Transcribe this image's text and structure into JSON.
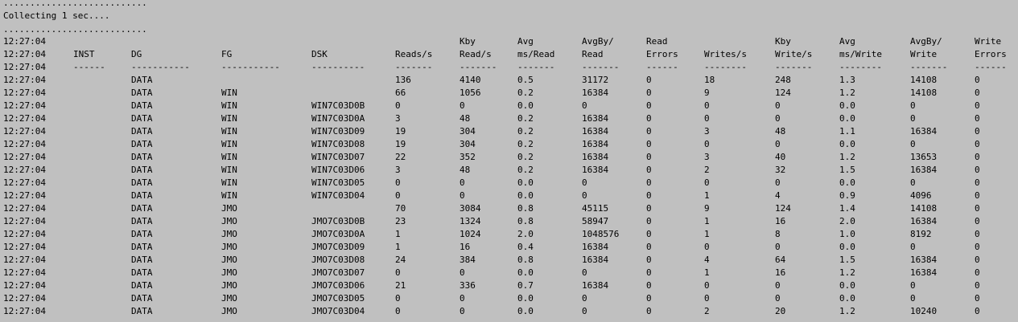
{
  "header": {
    "dots": "...........................",
    "collecting": "Collecting 1 sec....",
    "dots2": "..........................."
  },
  "columns": {
    "header1": [
      "",
      "",
      "",
      "",
      "",
      "",
      "Kby",
      "Avg",
      "AvgBy/",
      "Read",
      "",
      "Kby",
      "Avg",
      "AvgBy/",
      "Write"
    ],
    "header2": [
      "12:27:04",
      "INST",
      "DG",
      "FG",
      "DSK",
      "Reads/s",
      "Read/s",
      "ms/Read",
      "Read",
      "Errors",
      "Writes/s",
      "Write/s",
      "ms/Write",
      "Write",
      "Errors"
    ],
    "separators": [
      "12:27:04",
      "------",
      "-----------",
      "-----------",
      "----------",
      "-------",
      "-------",
      "-------",
      "-------",
      "------",
      "--------",
      "-------",
      "--------",
      "-------",
      "------"
    ],
    "first_time": "12:27:04"
  },
  "rows": [
    [
      "12:27:04",
      "",
      "DATA",
      "",
      "",
      "136",
      "4140",
      "0.5",
      "31172",
      "0",
      "18",
      "248",
      "1.3",
      "14108",
      "0"
    ],
    [
      "12:27:04",
      "",
      "DATA",
      "WIN",
      "",
      "66",
      "1056",
      "0.2",
      "16384",
      "0",
      "9",
      "124",
      "1.2",
      "14108",
      "0"
    ],
    [
      "12:27:04",
      "",
      "DATA",
      "WIN",
      "WIN7C03D0B",
      "0",
      "0",
      "0.0",
      "0",
      "0",
      "0",
      "0",
      "0.0",
      "0",
      "0"
    ],
    [
      "12:27:04",
      "",
      "DATA",
      "WIN",
      "WIN7C03D0A",
      "3",
      "48",
      "0.2",
      "16384",
      "0",
      "0",
      "0",
      "0.0",
      "0",
      "0"
    ],
    [
      "12:27:04",
      "",
      "DATA",
      "WIN",
      "WIN7C03D09",
      "19",
      "304",
      "0.2",
      "16384",
      "0",
      "3",
      "48",
      "1.1",
      "16384",
      "0"
    ],
    [
      "12:27:04",
      "",
      "DATA",
      "WIN",
      "WIN7C03D08",
      "19",
      "304",
      "0.2",
      "16384",
      "0",
      "0",
      "0",
      "0.0",
      "0",
      "0"
    ],
    [
      "12:27:04",
      "",
      "DATA",
      "WIN",
      "WIN7C03D07",
      "22",
      "352",
      "0.2",
      "16384",
      "0",
      "3",
      "40",
      "1.2",
      "13653",
      "0"
    ],
    [
      "12:27:04",
      "",
      "DATA",
      "WIN",
      "WIN7C03D06",
      "3",
      "48",
      "0.2",
      "16384",
      "0",
      "2",
      "32",
      "1.5",
      "16384",
      "0"
    ],
    [
      "12:27:04",
      "",
      "DATA",
      "WIN",
      "WIN7C03D05",
      "0",
      "0",
      "0.0",
      "0",
      "0",
      "0",
      "0",
      "0.0",
      "0",
      "0"
    ],
    [
      "12:27:04",
      "",
      "DATA",
      "WIN",
      "WIN7C03D04",
      "0",
      "0",
      "0.0",
      "0",
      "0",
      "1",
      "4",
      "0.9",
      "4096",
      "0"
    ],
    [
      "12:27:04",
      "",
      "DATA",
      "JMO",
      "",
      "70",
      "3084",
      "0.8",
      "45115",
      "0",
      "9",
      "124",
      "1.4",
      "14108",
      "0"
    ],
    [
      "12:27:04",
      "",
      "DATA",
      "JMO",
      "JMO7C03D0B",
      "23",
      "1324",
      "0.8",
      "58947",
      "0",
      "1",
      "16",
      "2.0",
      "16384",
      "0"
    ],
    [
      "12:27:04",
      "",
      "DATA",
      "JMO",
      "JMO7C03D0A",
      "1",
      "1024",
      "2.0",
      "1048576",
      "0",
      "1",
      "8",
      "1.0",
      "8192",
      "0"
    ],
    [
      "12:27:04",
      "",
      "DATA",
      "JMO",
      "JMO7C03D09",
      "1",
      "16",
      "0.4",
      "16384",
      "0",
      "0",
      "0",
      "0.0",
      "0",
      "0"
    ],
    [
      "12:27:04",
      "",
      "DATA",
      "JMO",
      "JMO7C03D08",
      "24",
      "384",
      "0.8",
      "16384",
      "0",
      "4",
      "64",
      "1.5",
      "16384",
      "0"
    ],
    [
      "12:27:04",
      "",
      "DATA",
      "JMO",
      "JMO7C03D07",
      "0",
      "0",
      "0.0",
      "0",
      "0",
      "1",
      "16",
      "1.2",
      "16384",
      "0"
    ],
    [
      "12:27:04",
      "",
      "DATA",
      "JMO",
      "JMO7C03D06",
      "21",
      "336",
      "0.7",
      "16384",
      "0",
      "0",
      "0",
      "0.0",
      "0",
      "0"
    ],
    [
      "12:27:04",
      "",
      "DATA",
      "JMO",
      "JMO7C03D05",
      "0",
      "0",
      "0.0",
      "0",
      "0",
      "0",
      "0",
      "0.0",
      "0",
      "0"
    ],
    [
      "12:27:04",
      "",
      "DATA",
      "JMO",
      "JMO7C03D04",
      "0",
      "0",
      "0.0",
      "0",
      "0",
      "2",
      "20",
      "1.2",
      "10240",
      "0"
    ]
  ]
}
